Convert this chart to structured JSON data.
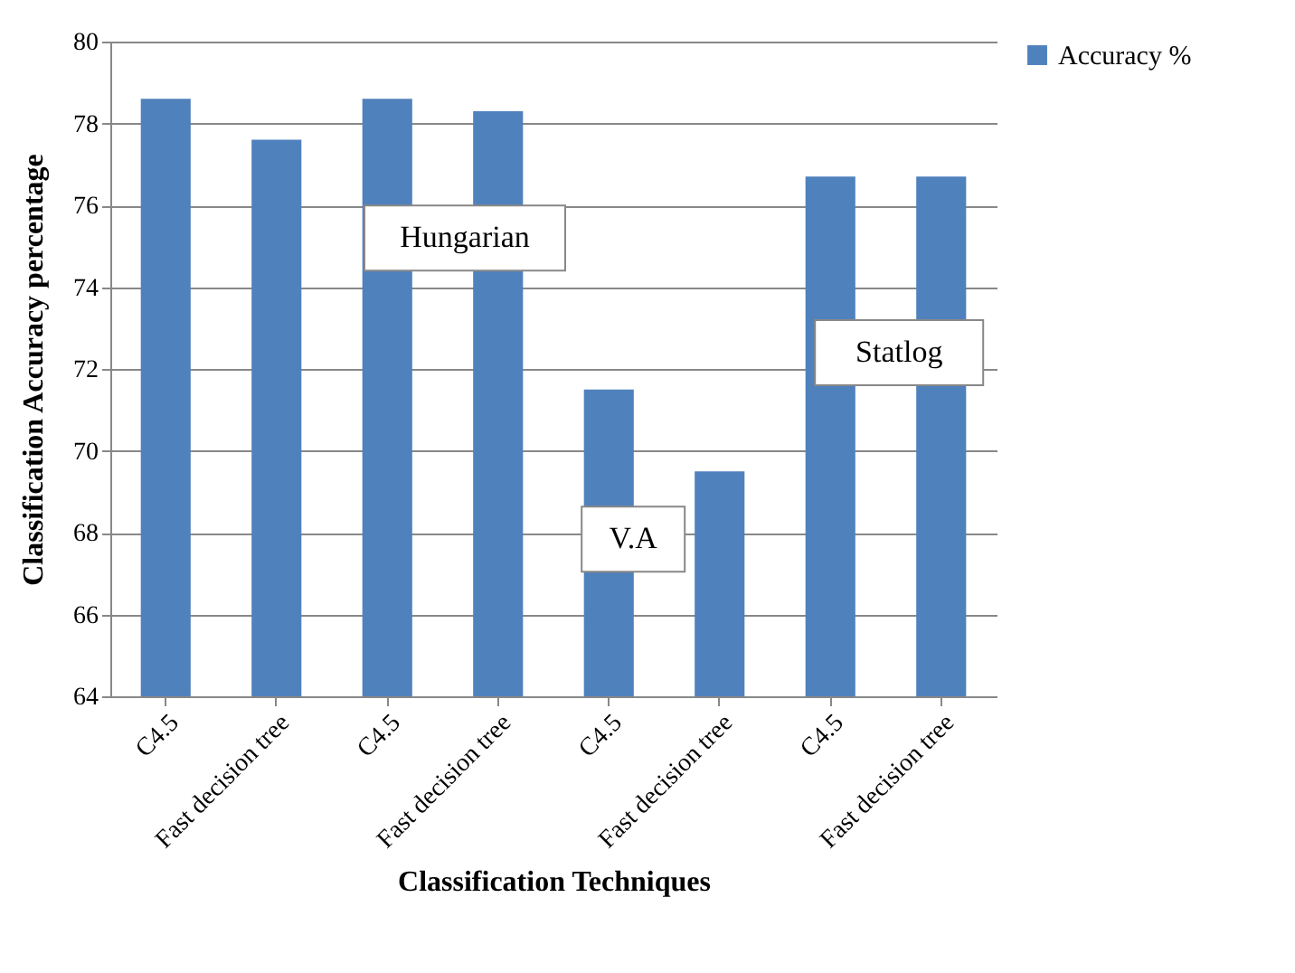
{
  "chart_data": {
    "type": "bar",
    "xlabel": "Classification Techniques",
    "ylabel": "Classification Accuracy percentage",
    "categories": [
      "C4.5",
      "Fast decision tree",
      "C4.5",
      "Fast decision tree",
      "C4.5",
      "Fast decision tree",
      "C4.5",
      "Fast decision tree"
    ],
    "series": [
      {
        "name": "Accuracy %",
        "color": "#4f81bd",
        "values": [
          78.6,
          77.6,
          78.6,
          78.3,
          71.5,
          69.5,
          76.7,
          76.7
        ]
      }
    ],
    "annotations": [
      "Hungarian",
      "V.A",
      "Statlog"
    ],
    "ylim": [
      64,
      80
    ],
    "yticks": [
      64,
      66,
      68,
      70,
      72,
      74,
      76,
      78,
      80
    ],
    "grid": "y",
    "legend": "right"
  }
}
